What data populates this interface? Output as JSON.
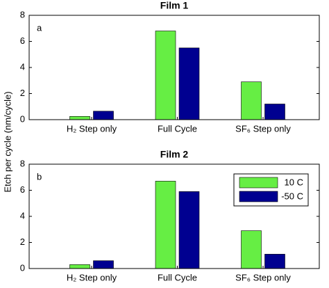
{
  "ylabel": "Etch per cycle (nm/cycle)",
  "chart_data": [
    {
      "type": "bar",
      "title": "Film 1",
      "annotation": "a",
      "categories": [
        "H₂ Step only",
        "Full Cycle",
        "SF₆ Step only"
      ],
      "series": [
        {
          "color": "#66ee44",
          "values": [
            0.25,
            6.8,
            2.9
          ]
        },
        {
          "color": "#000090",
          "values": [
            0.65,
            5.5,
            1.2
          ]
        }
      ],
      "ylim": [
        0,
        8
      ],
      "yticks": [
        0,
        2,
        4,
        6,
        8
      ]
    },
    {
      "type": "bar",
      "title": "Film 2",
      "annotation": "b",
      "categories": [
        "H₂ Step only",
        "Full Cycle",
        "SF₆ Step only"
      ],
      "series": [
        {
          "name": "10 C",
          "color": "#66ee44",
          "values": [
            0.3,
            6.7,
            2.9
          ]
        },
        {
          "name": "-50 C",
          "color": "#000090",
          "values": [
            0.6,
            5.9,
            1.1
          ]
        }
      ],
      "ylim": [
        0,
        8
      ],
      "yticks": [
        0,
        2,
        4,
        6,
        8
      ],
      "legend": "upper right"
    }
  ]
}
